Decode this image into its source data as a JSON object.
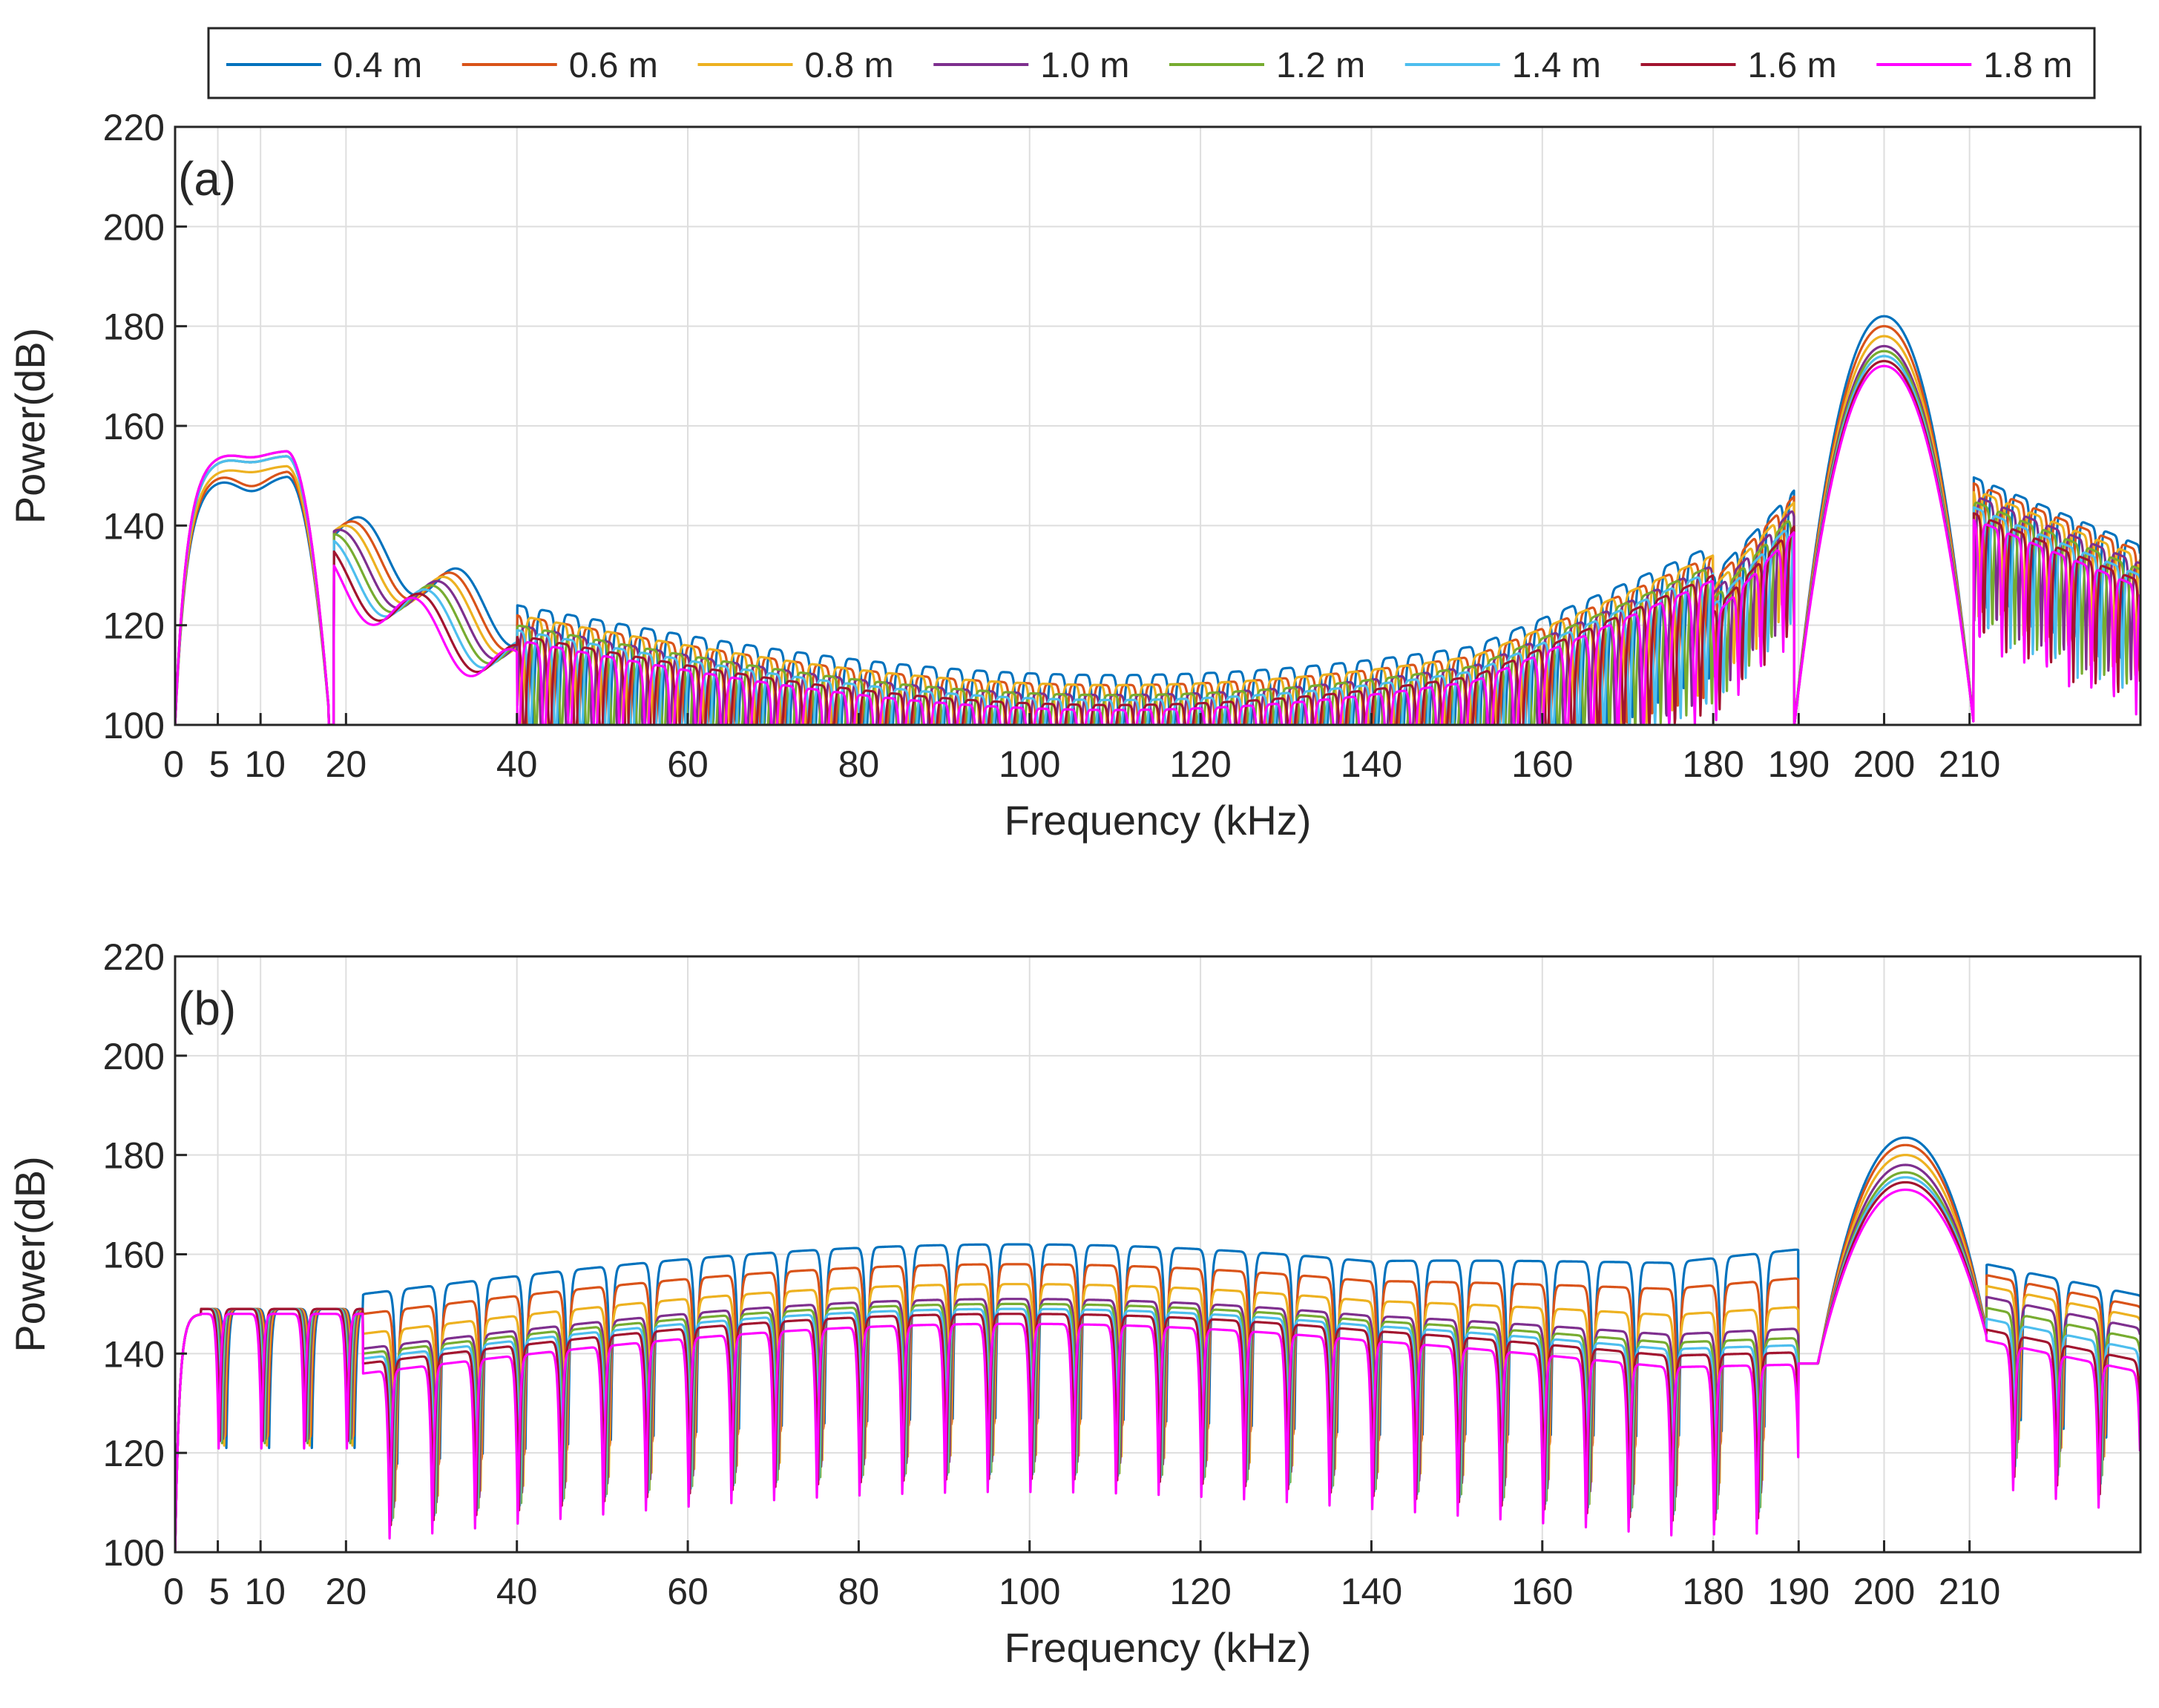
{
  "chart_data": [
    {
      "type": "line",
      "panel_label": "(a)",
      "xlabel": "Frequency (kHz)",
      "ylabel": "Power(dB)",
      "xlim": [
        0,
        230
      ],
      "ylim": [
        100,
        220
      ],
      "xticks": [
        0,
        5,
        10,
        20,
        40,
        60,
        80,
        100,
        120,
        140,
        160,
        180,
        190,
        200,
        210
      ],
      "yticks": [
        100,
        120,
        140,
        160,
        180,
        200,
        220
      ],
      "xtick_labels": [
        "0",
        "5",
        "10",
        "20",
        "40",
        "60",
        "80",
        "100",
        "120",
        "140",
        "160",
        "180",
        "190",
        "200",
        "210"
      ],
      "ytick_labels": [
        "100",
        "120",
        "140",
        "160",
        "180",
        "200",
        "220"
      ],
      "grid": true,
      "series": [
        {
          "name": "0.4 m",
          "color": "#0072BD",
          "low_peak": 150,
          "low_floor": 148,
          "main_peak": 182,
          "main_center": 200,
          "mid_level": 114,
          "side_level": 120
        },
        {
          "name": "0.6 m",
          "color": "#D95319",
          "low_peak": 151,
          "low_floor": 149,
          "main_peak": 180,
          "main_center": 200,
          "mid_level": 112,
          "side_level": 118
        },
        {
          "name": "0.8 m",
          "color": "#EDB120",
          "low_peak": 152,
          "low_floor": 150,
          "main_peak": 178,
          "main_center": 200,
          "mid_level": 112,
          "side_level": 117
        },
        {
          "name": "1.0 m",
          "color": "#7E2F8E",
          "low_peak": 154,
          "low_floor": 150,
          "main_peak": 176,
          "main_center": 200,
          "mid_level": 110,
          "side_level": 116
        },
        {
          "name": "1.2 m",
          "color": "#77AC30",
          "low_peak": 154,
          "low_floor": 150,
          "main_peak": 175,
          "main_center": 200,
          "mid_level": 110,
          "side_level": 115
        },
        {
          "name": "1.4 m",
          "color": "#4DBEEE",
          "low_peak": 154,
          "low_floor": 150,
          "main_peak": 174,
          "main_center": 200,
          "mid_level": 109,
          "side_level": 114
        },
        {
          "name": "1.6 m",
          "color": "#A2142F",
          "low_peak": 155,
          "low_floor": 150,
          "main_peak": 173,
          "main_center": 200,
          "mid_level": 108,
          "side_level": 113
        },
        {
          "name": "1.8 m",
          "color": "#FF00FF",
          "low_peak": 155,
          "low_floor": 150,
          "main_peak": 172,
          "main_center": 200,
          "mid_level": 107,
          "side_level": 112
        }
      ]
    },
    {
      "type": "line",
      "panel_label": "(b)",
      "xlabel": "Frequency (kHz)",
      "ylabel": "Power(dB)",
      "xlim": [
        0,
        230
      ],
      "ylim": [
        100,
        220
      ],
      "xticks": [
        0,
        5,
        10,
        20,
        40,
        60,
        80,
        100,
        120,
        140,
        160,
        180,
        190,
        200,
        210
      ],
      "yticks": [
        100,
        120,
        140,
        160,
        180,
        200,
        220
      ],
      "xtick_labels": [
        "0",
        "5",
        "10",
        "20",
        "40",
        "60",
        "80",
        "100",
        "120",
        "140",
        "160",
        "180",
        "190",
        "200",
        "210"
      ],
      "ytick_labels": [
        "100",
        "120",
        "140",
        "160",
        "180",
        "200",
        "220"
      ],
      "grid": true,
      "series": [
        {
          "name": "0.4 m",
          "color": "#0072BD",
          "low_peak": 155,
          "main_peak": 183.5,
          "main_center": 202.5,
          "lobe_level_mid": 158,
          "lobe_level_end": 160
        },
        {
          "name": "0.6 m",
          "color": "#D95319",
          "low_peak": 155,
          "main_peak": 182,
          "main_center": 202.5,
          "lobe_level_mid": 154,
          "lobe_level_end": 156
        },
        {
          "name": "0.8 m",
          "color": "#EDB120",
          "low_peak": 155,
          "main_peak": 180,
          "main_center": 202.5,
          "lobe_level_mid": 150,
          "lobe_level_end": 152
        },
        {
          "name": "1.0 m",
          "color": "#7E2F8E",
          "low_peak": 155,
          "main_peak": 178,
          "main_center": 202.5,
          "lobe_level_mid": 147,
          "lobe_level_end": 149
        },
        {
          "name": "1.2 m",
          "color": "#77AC30",
          "low_peak": 155,
          "main_peak": 176.5,
          "main_center": 202.5,
          "lobe_level_mid": 146,
          "lobe_level_end": 147
        },
        {
          "name": "1.4 m",
          "color": "#4DBEEE",
          "low_peak": 155,
          "main_peak": 175.5,
          "main_center": 202.5,
          "lobe_level_mid": 145,
          "lobe_level_end": 146
        },
        {
          "name": "1.6 m",
          "color": "#A2142F",
          "low_peak": 155,
          "main_peak": 174.5,
          "main_center": 202.5,
          "lobe_level_mid": 144,
          "lobe_level_end": 145
        },
        {
          "name": "1.8 m",
          "color": "#FF00FF",
          "low_peak": 154,
          "main_peak": 173,
          "main_center": 202.5,
          "lobe_level_mid": 142,
          "lobe_level_end": 144
        }
      ]
    }
  ],
  "legend": {
    "placement": "top-center",
    "orientation": "horizontal",
    "entries": [
      "0.4 m",
      "0.6 m",
      "0.8 m",
      "1.0 m",
      "1.2 m",
      "1.4 m",
      "1.6 m",
      "1.8 m"
    ]
  }
}
